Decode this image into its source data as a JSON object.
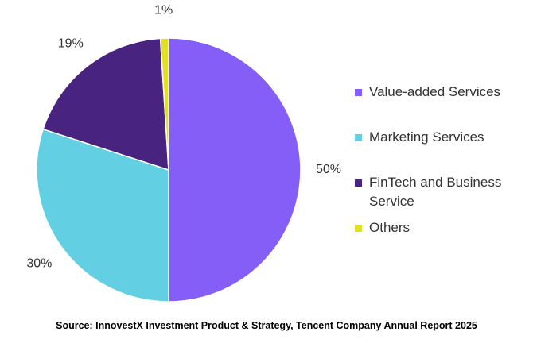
{
  "chart_data": {
    "type": "pie",
    "start_angle_deg": 0,
    "direction": "clockwise",
    "slices": [
      {
        "label": "Value-added Services",
        "value": 50,
        "display": "50%",
        "color": "#845ef7"
      },
      {
        "label": "Marketing Services",
        "value": 30,
        "display": "30%",
        "color": "#62d0e2"
      },
      {
        "label": "FinTech and Business Service",
        "value": 19,
        "display": "19%",
        "color": "#482380"
      },
      {
        "label": "Others",
        "value": 1,
        "display": "1%",
        "color": "#e2e022"
      }
    ],
    "legend_position": "right",
    "source": "Source: InnovestX Investment Product & Strategy, Tencent Company Annual Report 2025"
  }
}
